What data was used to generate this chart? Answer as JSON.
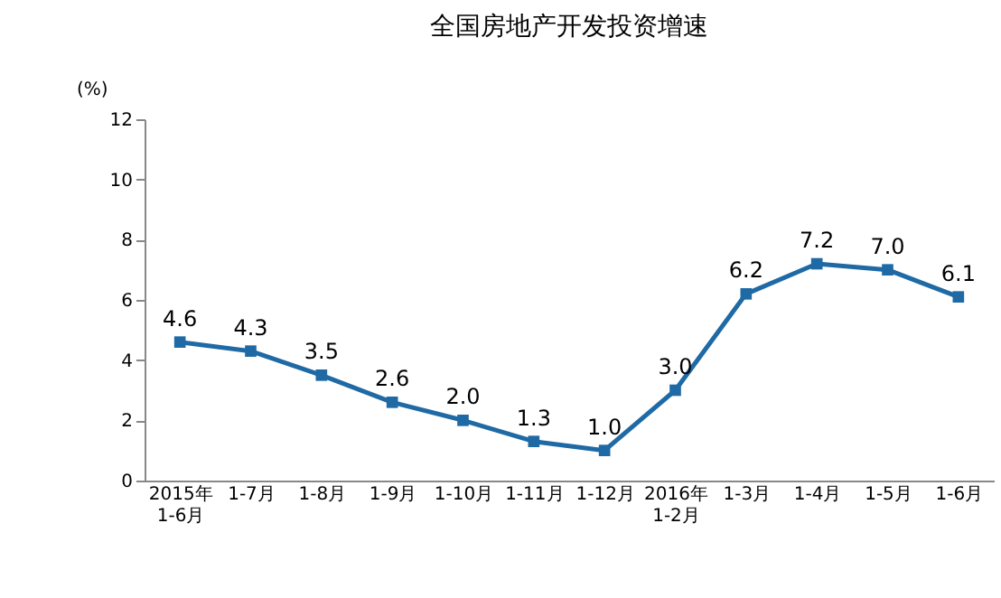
{
  "chart_data": {
    "type": "line",
    "title": "全国房地产开发投资增速",
    "ylabel": "(%)",
    "categories": [
      "2015年\n1-6月",
      "1-7月",
      "1-8月",
      "1-9月",
      "1-10月",
      "1-11月",
      "1-12月",
      "2016年\n1-2月",
      "1-3月",
      "1-4月",
      "1-5月",
      "1-6月"
    ],
    "series": [
      {
        "color": "#1f6aa5",
        "values": [
          4.6,
          4.3,
          3.5,
          2.6,
          2.0,
          1.3,
          1.0,
          3.0,
          6.2,
          7.2,
          7.0,
          6.1
        ]
      }
    ],
    "value_labels": [
      "4.6",
      "4.3",
      "3.5",
      "2.6",
      "2.0",
      "1.3",
      "1.0",
      "3.0",
      "6.2",
      "7.2",
      "7.0",
      "6.1"
    ],
    "ylim": [
      0,
      12
    ],
    "yticks": [
      0,
      2,
      4,
      6,
      8,
      10,
      12
    ],
    "marker": "square",
    "line_style": "solid"
  }
}
